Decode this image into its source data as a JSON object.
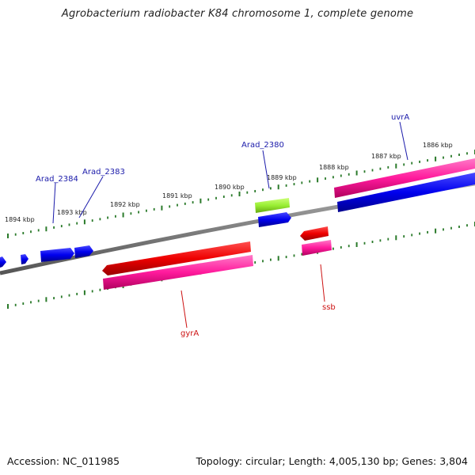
{
  "title": "Agrobacterium radiobacter K84 chromosome 1, complete genome",
  "footer": {
    "accession": "Accession: NC_011985",
    "summary": "Topology: circular; Length: 4,005,130 bp; Genes: 3,804"
  },
  "colors": {
    "backbone": "#808080",
    "tick": "#2a7a2a",
    "forward_cds": "#ff3399",
    "forward_gene": "#0000ee",
    "reverse_cds": "#ff1a9c",
    "reverse_gene": "#ee0000",
    "rna": "#99ee33",
    "label_blue": "#1a1aaa",
    "label_red": "#cc1111"
  },
  "scale_labels": [
    "1886 kbp",
    "1887 kbp",
    "1888 kbp",
    "1889 kbp",
    "1890 kbp",
    "1891 kbp",
    "1892 kbp",
    "1893 kbp",
    "1894 kbp"
  ],
  "gene_labels": [
    {
      "name": "uvrA",
      "strand": "forward"
    },
    {
      "name": "Arad_2380",
      "strand": "forward"
    },
    {
      "name": "Arad_2383",
      "strand": "forward"
    },
    {
      "name": "Arad_2384",
      "strand": "forward"
    },
    {
      "name": "gyrA",
      "strand": "reverse"
    },
    {
      "name": "ssb",
      "strand": "reverse"
    }
  ]
}
